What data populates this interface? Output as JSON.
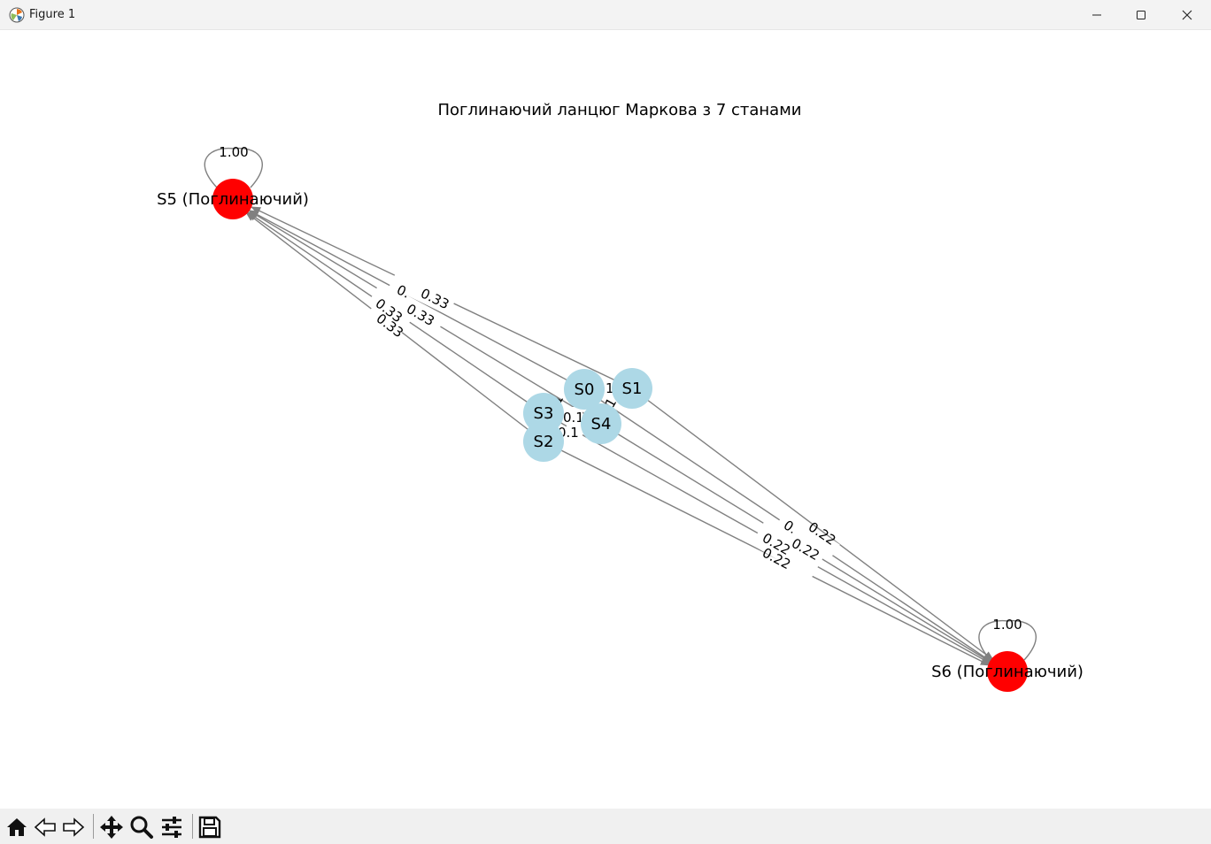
{
  "window": {
    "title": "Figure 1",
    "controls": [
      "minimize",
      "maximize",
      "close"
    ]
  },
  "figure": {
    "title": "Поглинаючий ланцюг Маркова з 7 станами",
    "nodes": [
      {
        "id": "S0",
        "label": "S0",
        "type": "transient",
        "color": "#add8e6"
      },
      {
        "id": "S1",
        "label": "S1",
        "type": "transient",
        "color": "#add8e6"
      },
      {
        "id": "S2",
        "label": "S2",
        "type": "transient",
        "color": "#add8e6"
      },
      {
        "id": "S3",
        "label": "S3",
        "type": "transient",
        "color": "#add8e6"
      },
      {
        "id": "S4",
        "label": "S4",
        "type": "transient",
        "color": "#add8e6"
      },
      {
        "id": "S5",
        "label": "S5 (Поглинаючий)",
        "type": "absorbing",
        "color": "#ff0000"
      },
      {
        "id": "S6",
        "label": "S6 (Поглинаючий)",
        "type": "absorbing",
        "color": "#ff0000"
      }
    ],
    "edges": [
      {
        "from": "S5",
        "to": "S5",
        "label": "1.00"
      },
      {
        "from": "S6",
        "to": "S6",
        "label": "1.00"
      },
      {
        "from": "S0",
        "to": "S5",
        "label": "0.33"
      },
      {
        "from": "S1",
        "to": "S5",
        "label": "0.33"
      },
      {
        "from": "S2",
        "to": "S5",
        "label": "0.33"
      },
      {
        "from": "S3",
        "to": "S5",
        "label": "0.33"
      },
      {
        "from": "S4",
        "to": "S5",
        "label": "0.33"
      },
      {
        "from": "S0",
        "to": "S6",
        "label": "0.22"
      },
      {
        "from": "S1",
        "to": "S6",
        "label": "0.22"
      },
      {
        "from": "S2",
        "to": "S6",
        "label": "0.22"
      },
      {
        "from": "S3",
        "to": "S6",
        "label": "0.22"
      },
      {
        "from": "S4",
        "to": "S6",
        "label": "0.22"
      }
    ],
    "edge_label_fragments": [
      "0.",
      "0.33",
      "0.33",
      "0.33",
      "0.33",
      "0.",
      "0.22",
      "0.22",
      "0.22",
      "0.22",
      "1",
      "1",
      "1",
      "0.1",
      "0.1"
    ]
  },
  "toolbar": {
    "buttons": [
      "home-icon",
      "back-icon",
      "forward-icon",
      "pan-icon",
      "zoom-icon",
      "configure-subplots-icon",
      "save-icon"
    ]
  }
}
